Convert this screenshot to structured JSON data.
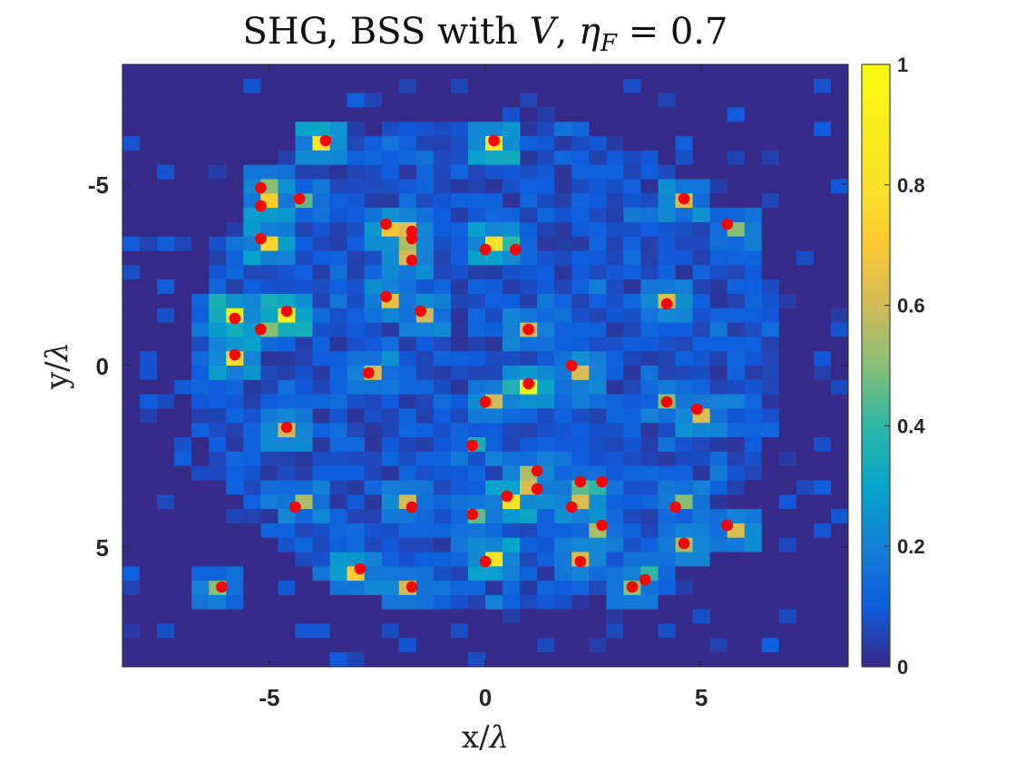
{
  "chart_data": {
    "type": "heatmap",
    "title": {
      "prefix": "SHG, BSS with ",
      "sym": "V",
      "sep": ",  ",
      "eta": "η",
      "sub": "F",
      "eq": " = 0.7"
    },
    "xlabel": {
      "main": "x/",
      "sym": "λ"
    },
    "ylabel": {
      "main": "y/",
      "sym": "λ"
    },
    "xlim": [
      -8.4,
      8.4
    ],
    "ylim": [
      -8.3,
      8.3
    ],
    "y_direction": "down",
    "grid_cells": 42,
    "xticks": [
      {
        "v": -5,
        "label": "-5"
      },
      {
        "v": 0,
        "label": "0"
      },
      {
        "v": 5,
        "label": "5"
      }
    ],
    "yticks": [
      {
        "v": -5,
        "label": "-5"
      },
      {
        "v": 0,
        "label": "0"
      },
      {
        "v": 5,
        "label": "5"
      }
    ],
    "colorbar": {
      "colormap": "parula",
      "range": [
        0,
        1
      ],
      "ticks": [
        {
          "v": 0,
          "label": "0"
        },
        {
          "v": 0.2,
          "label": "0.2"
        },
        {
          "v": 0.4,
          "label": "0.4"
        },
        {
          "v": 0.6,
          "label": "0.6"
        },
        {
          "v": 0.8,
          "label": "0.8"
        },
        {
          "v": 1,
          "label": "1"
        }
      ]
    },
    "hotspots": [
      {
        "x": -3.7,
        "y": -6.2,
        "v": 0.82
      },
      {
        "x": 0.2,
        "y": -6.2,
        "v": 0.85
      },
      {
        "x": -5.2,
        "y": -4.9,
        "v": 0.5
      },
      {
        "x": -5.2,
        "y": -4.4,
        "v": 0.72
      },
      {
        "x": -4.3,
        "y": -4.6,
        "v": 0.45
      },
      {
        "x": 4.6,
        "y": -4.6,
        "v": 0.62
      },
      {
        "x": -2.3,
        "y": -3.9,
        "v": 0.68
      },
      {
        "x": 5.6,
        "y": -3.9,
        "v": 0.5
      },
      {
        "x": -1.7,
        "y": -3.7,
        "v": 0.62
      },
      {
        "x": -1.7,
        "y": -3.5,
        "v": 0.55
      },
      {
        "x": -5.2,
        "y": -3.5,
        "v": 0.75
      },
      {
        "x": 0.0,
        "y": -3.2,
        "v": 0.8
      },
      {
        "x": 0.7,
        "y": -3.2,
        "v": 0.4
      },
      {
        "x": -1.7,
        "y": -2.9,
        "v": 0.6
      },
      {
        "x": -2.3,
        "y": -1.9,
        "v": 0.65
      },
      {
        "x": 4.2,
        "y": -1.7,
        "v": 0.62
      },
      {
        "x": -4.6,
        "y": -1.5,
        "v": 0.9
      },
      {
        "x": -1.5,
        "y": -1.5,
        "v": 0.6
      },
      {
        "x": -5.8,
        "y": -1.3,
        "v": 0.88
      },
      {
        "x": -5.2,
        "y": -1.0,
        "v": 0.5
      },
      {
        "x": 1.0,
        "y": -1.0,
        "v": 0.6
      },
      {
        "x": -5.8,
        "y": -0.3,
        "v": 0.78
      },
      {
        "x": 2.0,
        "y": 0.0,
        "v": 0.62
      },
      {
        "x": -2.7,
        "y": 0.2,
        "v": 0.62
      },
      {
        "x": 1.0,
        "y": 0.5,
        "v": 0.95
      },
      {
        "x": 0.0,
        "y": 1.0,
        "v": 0.6
      },
      {
        "x": 4.2,
        "y": 1.0,
        "v": 0.5
      },
      {
        "x": 4.9,
        "y": 1.2,
        "v": 0.62
      },
      {
        "x": -4.6,
        "y": 1.7,
        "v": 0.6
      },
      {
        "x": -0.3,
        "y": 2.2,
        "v": 0.35
      },
      {
        "x": 1.2,
        "y": 2.9,
        "v": 0.55
      },
      {
        "x": 2.2,
        "y": 3.2,
        "v": 0.45
      },
      {
        "x": 2.7,
        "y": 3.2,
        "v": 0.4
      },
      {
        "x": 1.2,
        "y": 3.4,
        "v": 0.62
      },
      {
        "x": 0.5,
        "y": 3.6,
        "v": 0.8
      },
      {
        "x": -4.4,
        "y": 3.9,
        "v": 0.55
      },
      {
        "x": -1.7,
        "y": 3.9,
        "v": 0.6
      },
      {
        "x": 2.0,
        "y": 3.9,
        "v": 0.62
      },
      {
        "x": 4.4,
        "y": 3.9,
        "v": 0.5
      },
      {
        "x": -0.3,
        "y": 4.1,
        "v": 0.45
      },
      {
        "x": 2.7,
        "y": 4.4,
        "v": 0.55
      },
      {
        "x": 5.6,
        "y": 4.4,
        "v": 0.62
      },
      {
        "x": 4.6,
        "y": 4.9,
        "v": 0.55
      },
      {
        "x": 0.0,
        "y": 5.4,
        "v": 0.85
      },
      {
        "x": 2.2,
        "y": 5.4,
        "v": 0.62
      },
      {
        "x": -2.9,
        "y": 5.6,
        "v": 0.72
      },
      {
        "x": 3.7,
        "y": 5.9,
        "v": 0.4
      },
      {
        "x": -6.1,
        "y": 6.1,
        "v": 0.5
      },
      {
        "x": -1.7,
        "y": 6.1,
        "v": 0.6
      },
      {
        "x": 3.4,
        "y": 6.1,
        "v": 0.5
      }
    ],
    "markers": {
      "color": "#ff0000",
      "points": [
        {
          "x": -3.7,
          "y": -6.2
        },
        {
          "x": 0.2,
          "y": -6.2
        },
        {
          "x": -5.2,
          "y": -4.9
        },
        {
          "x": -5.2,
          "y": -4.4
        },
        {
          "x": -4.3,
          "y": -4.6
        },
        {
          "x": 4.6,
          "y": -4.6
        },
        {
          "x": -2.3,
          "y": -3.9
        },
        {
          "x": 5.6,
          "y": -3.9
        },
        {
          "x": -1.7,
          "y": -3.7
        },
        {
          "x": -1.7,
          "y": -3.5
        },
        {
          "x": -5.2,
          "y": -3.5
        },
        {
          "x": 0.0,
          "y": -3.2
        },
        {
          "x": 0.7,
          "y": -3.2
        },
        {
          "x": -1.7,
          "y": -2.9
        },
        {
          "x": -2.3,
          "y": -1.9
        },
        {
          "x": 4.2,
          "y": -1.7
        },
        {
          "x": -4.6,
          "y": -1.5
        },
        {
          "x": -1.5,
          "y": -1.5
        },
        {
          "x": -5.8,
          "y": -1.3
        },
        {
          "x": -5.2,
          "y": -1.0
        },
        {
          "x": 1.0,
          "y": -1.0
        },
        {
          "x": -5.8,
          "y": -0.3
        },
        {
          "x": 2.0,
          "y": 0.0
        },
        {
          "x": -2.7,
          "y": 0.2
        },
        {
          "x": 1.0,
          "y": 0.5
        },
        {
          "x": 0.0,
          "y": 1.0
        },
        {
          "x": 4.2,
          "y": 1.0
        },
        {
          "x": 4.9,
          "y": 1.2
        },
        {
          "x": -4.6,
          "y": 1.7
        },
        {
          "x": -0.3,
          "y": 2.2
        },
        {
          "x": 1.2,
          "y": 2.9
        },
        {
          "x": 2.2,
          "y": 3.2
        },
        {
          "x": 2.7,
          "y": 3.2
        },
        {
          "x": 1.2,
          "y": 3.4
        },
        {
          "x": 0.5,
          "y": 3.6
        },
        {
          "x": -4.4,
          "y": 3.9
        },
        {
          "x": -1.7,
          "y": 3.9
        },
        {
          "x": 2.0,
          "y": 3.9
        },
        {
          "x": 4.4,
          "y": 3.9
        },
        {
          "x": -0.3,
          "y": 4.1
        },
        {
          "x": 2.7,
          "y": 4.4
        },
        {
          "x": 5.6,
          "y": 4.4
        },
        {
          "x": 4.6,
          "y": 4.9
        },
        {
          "x": 0.0,
          "y": 5.4
        },
        {
          "x": 2.2,
          "y": 5.4
        },
        {
          "x": -2.9,
          "y": 5.6
        },
        {
          "x": 3.7,
          "y": 5.9
        },
        {
          "x": -6.1,
          "y": 6.1
        },
        {
          "x": -1.7,
          "y": 6.1
        },
        {
          "x": 3.4,
          "y": 6.1
        }
      ]
    }
  }
}
